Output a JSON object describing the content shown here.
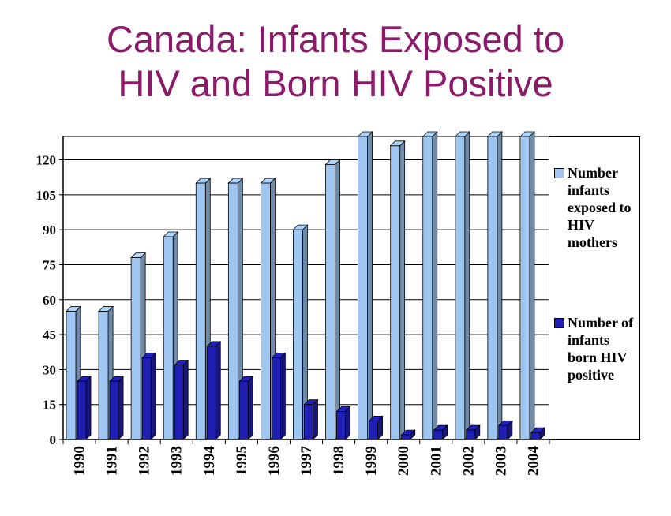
{
  "title": {
    "line1": "Canada: Infants Exposed to",
    "line2": "HIV and Born HIV Positive",
    "color": "#8B1A6B"
  },
  "chart_data": {
    "type": "bar",
    "categories": [
      "1990",
      "1991",
      "1992",
      "1993",
      "1994",
      "1995",
      "1996",
      "1997",
      "1998",
      "1999",
      "2000",
      "2001",
      "2002",
      "2003",
      "2004"
    ],
    "series": [
      {
        "name": "Number infants exposed to HIV mothers",
        "color": "#9EC6F0",
        "values": [
          55,
          55,
          78,
          87,
          110,
          110,
          110,
          90,
          118,
          130,
          126,
          130,
          130,
          130,
          130
        ]
      },
      {
        "name": "Number of infants born HIV positive",
        "color": "#1F1FB4",
        "values": [
          25,
          25,
          35,
          32,
          40,
          25,
          35,
          15,
          12,
          8,
          2,
          4,
          4,
          6,
          3
        ]
      }
    ],
    "yticks": [
      0,
      15,
      30,
      45,
      60,
      75,
      90,
      105,
      120
    ],
    "ylim": [
      0,
      130
    ],
    "xlabel": "",
    "ylabel": "",
    "grid": true,
    "legend_position": "right",
    "bar_style": "3d"
  }
}
